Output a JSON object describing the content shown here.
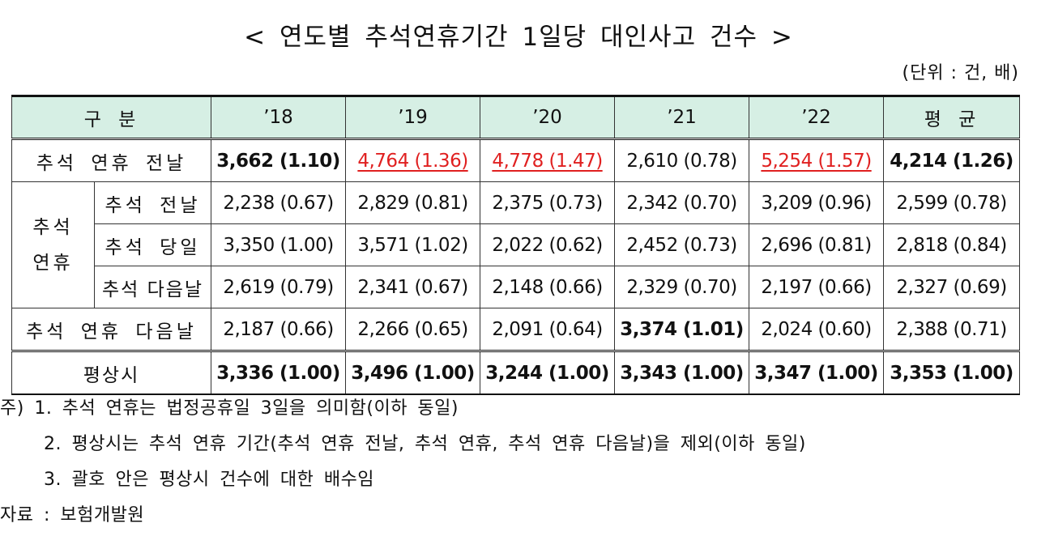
{
  "title": "< 연도별 추석연휴기간 1일당 대인사고 건수 >",
  "unit": "(단위 : 건, 배)",
  "table": {
    "headers": [
      "구 분",
      "’18",
      "’19",
      "’20",
      "’21",
      "’22",
      "평 균"
    ],
    "group_label_line1": "추석",
    "group_label_line2": "연휴",
    "rows": [
      {
        "label": "추석 연휴 전날",
        "cells": [
          "3,662 (1.10)",
          "4,764 (1.36)",
          "4,778 (1.47)",
          "2,610 (0.78)",
          "5,254 (1.57)",
          "4,214 (1.26)"
        ]
      },
      {
        "label": "추석 전날",
        "cells": [
          "2,238 (0.67)",
          "2,829 (0.81)",
          "2,375 (0.73)",
          "2,342 (0.70)",
          "3,209 (0.96)",
          "2,599 (0.78)"
        ]
      },
      {
        "label": "추석 당일",
        "cells": [
          "3,350 (1.00)",
          "3,571 (1.02)",
          "2,022 (0.62)",
          "2,452 (0.73)",
          "2,696 (0.81)",
          "2,818 (0.84)"
        ]
      },
      {
        "label": "추석 다음날",
        "cells": [
          "2,619 (0.79)",
          "2,341 (0.67)",
          "2,148 (0.66)",
          "2,329 (0.70)",
          "2,197 (0.66)",
          "2,327 (0.69)"
        ]
      },
      {
        "label": "추석 연휴 다음날",
        "cells": [
          "2,187 (0.66)",
          "2,266 (0.65)",
          "2,091 (0.64)",
          "3,374 (1.01)",
          "2,024 (0.60)",
          "2,388 (0.71)"
        ]
      },
      {
        "label": "평상시",
        "cells": [
          "3,336 (1.00)",
          "3,496 (1.00)",
          "3,244 (1.00)",
          "3,343 (1.00)",
          "3,347 (1.00)",
          "3,353 (1.00)"
        ]
      }
    ],
    "header_bg_color": "#d6efe4",
    "highlight_color": "#e02020"
  },
  "notes": {
    "note1": "주) 1. 추석 연휴는 법정공휴일 3일을 의미함(이하 동일)",
    "note2": "2. 평상시는 추석 연휴 기간(추석 연휴 전날, 추석 연휴, 추석 연휴 다음날)을 제외(이하 동일)",
    "note3": "3. 괄호 안은 평상시 건수에 대한 배수임",
    "source": "자료 : 보험개발원"
  }
}
